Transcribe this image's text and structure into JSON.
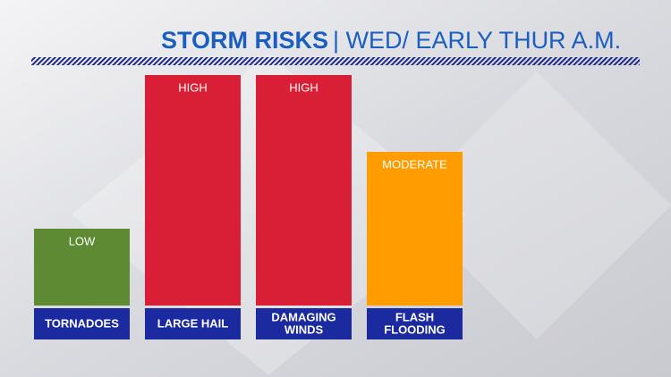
{
  "chart_data": {
    "type": "bar",
    "title": "STORM RISKS",
    "subtitle": "| WED/ EARLY THUR A.M.",
    "categories": [
      [
        "TORNADOES"
      ],
      [
        "LARGE HAIL"
      ],
      [
        "DAMAGING",
        "WINDS"
      ],
      [
        "FLASH",
        "FLOODING"
      ]
    ],
    "values": [
      1,
      3,
      3,
      2
    ],
    "value_labels": [
      "LOW",
      "HIGH",
      "HIGH",
      "MODERATE"
    ],
    "colors": [
      "#5e8a34",
      "#d91f35",
      "#d91f35",
      "#ff9c00"
    ],
    "ylim": [
      0,
      3
    ]
  }
}
